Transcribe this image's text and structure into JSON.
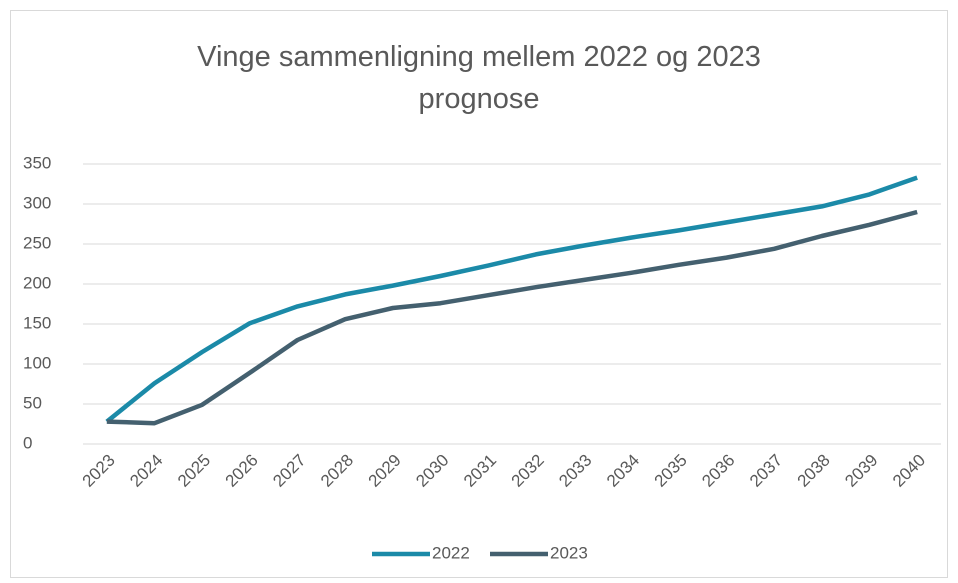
{
  "chart_data": {
    "type": "line",
    "title": "Vinge sammenligning mellem 2022 og 2023 prognose",
    "x": [
      "2023",
      "2024",
      "2025",
      "2026",
      "2027",
      "2028",
      "2029",
      "2030",
      "2031",
      "2032",
      "2033",
      "2034",
      "2035",
      "2036",
      "2037",
      "2038",
      "2039",
      "2040"
    ],
    "series": [
      {
        "name": "2022",
        "color": "#1b8aa8",
        "values": [
          28,
          76,
          115,
          151,
          172,
          187,
          198,
          210,
          223,
          237,
          248,
          258,
          267,
          277,
          287,
          297,
          312,
          333
        ]
      },
      {
        "name": "2023",
        "color": "#44606f",
        "values": [
          28,
          26,
          49,
          89,
          130,
          156,
          170,
          176,
          186,
          196,
          205,
          214,
          224,
          233,
          244,
          260,
          274,
          290
        ]
      }
    ],
    "ylim": [
      0,
      350
    ],
    "yticks": [
      0,
      50,
      100,
      150,
      200,
      250,
      300,
      350
    ],
    "grid": true,
    "legend": "bottom"
  }
}
